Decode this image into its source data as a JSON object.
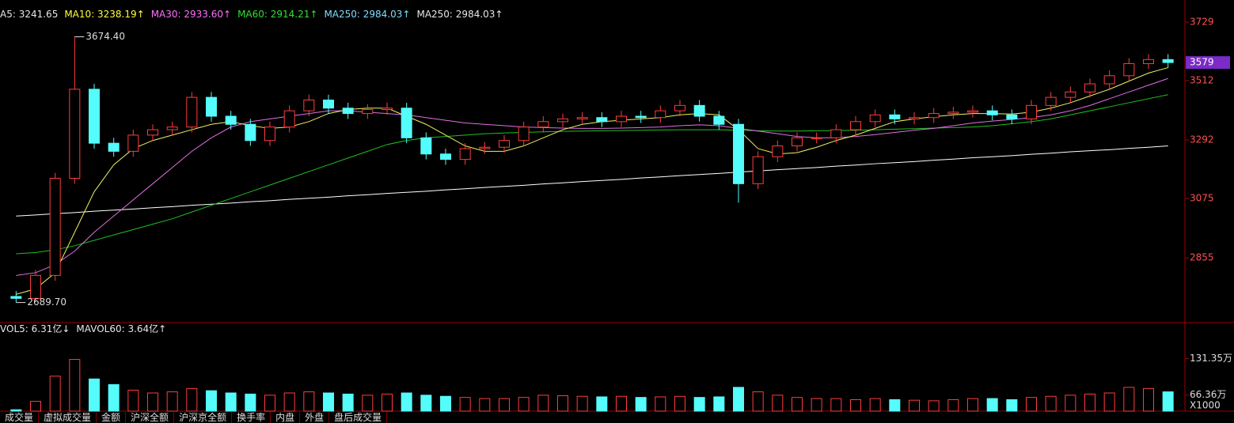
{
  "chart_data": {
    "type": "candlestick",
    "header": [
      {
        "text": "A5: 3241.65",
        "color": "#e6e6e6"
      },
      {
        "text": "MA10: 3238.19↑",
        "color": "#ffff40"
      },
      {
        "text": "MA30: 2933.60↑",
        "color": "#ff70ff"
      },
      {
        "text": "MA60: 2914.21↑",
        "color": "#30e030"
      },
      {
        "text": "MA250: 2984.03↑",
        "color": "#7fdcff"
      },
      {
        "text": "MA250: 2984.03↑",
        "color": "#e6e6e6"
      }
    ],
    "open": [
      2712,
      2705,
      2790,
      3150,
      3480,
      3280,
      3250,
      3310,
      3330,
      3340,
      3450,
      3380,
      3350,
      3290,
      3340,
      3400,
      3440,
      3410,
      3390,
      3405,
      3410,
      3300,
      3240,
      3220,
      3260,
      3265,
      3290,
      3340,
      3360,
      3370,
      3375,
      3360,
      3380,
      3375,
      3400,
      3420,
      3380,
      3350,
      3130,
      3230,
      3270,
      3300,
      3300,
      3330,
      3360,
      3385,
      3370,
      3375,
      3390,
      3395,
      3400,
      3385,
      3370,
      3420,
      3450,
      3470,
      3500,
      3530,
      3575,
      3590
    ],
    "high": [
      2732,
      2810,
      3170,
      3674.4,
      3500,
      3300,
      3330,
      3350,
      3360,
      3470,
      3470,
      3400,
      3370,
      3360,
      3420,
      3460,
      3460,
      3430,
      3425,
      3430,
      3430,
      3320,
      3260,
      3280,
      3285,
      3310,
      3360,
      3380,
      3390,
      3395,
      3395,
      3400,
      3400,
      3420,
      3440,
      3440,
      3400,
      3370,
      3250,
      3290,
      3320,
      3320,
      3350,
      3380,
      3405,
      3405,
      3395,
      3410,
      3415,
      3420,
      3420,
      3405,
      3440,
      3470,
      3490,
      3520,
      3550,
      3595,
      3610,
      3610
    ],
    "low": [
      2689.7,
      2692,
      2770,
      3130,
      3260,
      3230,
      3230,
      3290,
      3310,
      3320,
      3360,
      3330,
      3270,
      3270,
      3320,
      3380,
      3390,
      3370,
      3370,
      3385,
      3280,
      3220,
      3200,
      3200,
      3240,
      3245,
      3270,
      3320,
      3340,
      3350,
      3340,
      3340,
      3355,
      3355,
      3380,
      3360,
      3330,
      3060,
      3110,
      3210,
      3250,
      3280,
      3280,
      3310,
      3340,
      3350,
      3350,
      3355,
      3370,
      3375,
      3365,
      3350,
      3350,
      3400,
      3430,
      3450,
      3480,
      3510,
      3555,
      3559
    ],
    "close": [
      2705,
      2790,
      3150,
      3480,
      3280,
      3250,
      3310,
      3330,
      3340,
      3450,
      3380,
      3350,
      3290,
      3340,
      3400,
      3440,
      3410,
      3390,
      3405,
      3410,
      3300,
      3240,
      3220,
      3260,
      3265,
      3290,
      3340,
      3360,
      3370,
      3375,
      3360,
      3380,
      3375,
      3400,
      3420,
      3380,
      3350,
      3130,
      3230,
      3270,
      3300,
      3300,
      3330,
      3360,
      3385,
      3370,
      3375,
      3390,
      3395,
      3400,
      3385,
      3370,
      3420,
      3450,
      3470,
      3500,
      3530,
      3575,
      3590,
      3579
    ],
    "series": [
      {
        "color": "#ffffff",
        "values": [
          3010,
          3014,
          3019,
          3023,
          3028,
          3032,
          3036,
          3041,
          3045,
          3050,
          3054,
          3058,
          3063,
          3067,
          3072,
          3076,
          3080,
          3085,
          3089,
          3094,
          3098,
          3102,
          3107,
          3111,
          3116,
          3120,
          3124,
          3129,
          3133,
          3138,
          3142,
          3146,
          3151,
          3155,
          3160,
          3164,
          3168,
          3173,
          3177,
          3182,
          3186,
          3190,
          3195,
          3199,
          3204,
          3208,
          3212,
          3217,
          3221,
          3226,
          3230,
          3234,
          3239,
          3243,
          3248,
          3252,
          3256,
          3261,
          3265,
          3270
        ]
      },
      {
        "color": "#20c020",
        "values": [
          2870,
          2875,
          2885,
          2900,
          2920,
          2940,
          2960,
          2980,
          3000,
          3025,
          3050,
          3075,
          3100,
          3125,
          3150,
          3175,
          3200,
          3225,
          3250,
          3275,
          3290,
          3300,
          3305,
          3310,
          3315,
          3318,
          3320,
          3322,
          3324,
          3325,
          3326,
          3327,
          3328,
          3329,
          3330,
          3330,
          3330,
          3328,
          3326,
          3325,
          3325,
          3326,
          3327,
          3328,
          3330,
          3332,
          3334,
          3336,
          3338,
          3340,
          3345,
          3352,
          3360,
          3370,
          3385,
          3400,
          3415,
          3430,
          3445,
          3460
        ]
      },
      {
        "color": "#e070e0",
        "values": [
          2790,
          2800,
          2830,
          2880,
          2950,
          3010,
          3070,
          3130,
          3190,
          3250,
          3300,
          3340,
          3360,
          3370,
          3380,
          3390,
          3400,
          3400,
          3395,
          3390,
          3385,
          3375,
          3365,
          3355,
          3350,
          3345,
          3340,
          3338,
          3336,
          3335,
          3335,
          3336,
          3338,
          3340,
          3345,
          3348,
          3345,
          3335,
          3325,
          3315,
          3305,
          3300,
          3300,
          3305,
          3312,
          3320,
          3328,
          3335,
          3345,
          3355,
          3362,
          3368,
          3375,
          3385,
          3400,
          3420,
          3445,
          3470,
          3495,
          3520
        ]
      },
      {
        "color": "#f0f060",
        "values": [
          2720,
          2740,
          2800,
          2950,
          3100,
          3200,
          3260,
          3290,
          3310,
          3330,
          3350,
          3360,
          3345,
          3335,
          3340,
          3360,
          3390,
          3405,
          3410,
          3410,
          3380,
          3350,
          3310,
          3270,
          3250,
          3250,
          3270,
          3300,
          3330,
          3350,
          3360,
          3365,
          3370,
          3375,
          3385,
          3390,
          3385,
          3330,
          3260,
          3240,
          3245,
          3265,
          3290,
          3310,
          3335,
          3360,
          3370,
          3378,
          3385,
          3390,
          3390,
          3388,
          3395,
          3410,
          3430,
          3455,
          3480,
          3510,
          3540,
          3560
        ]
      }
    ],
    "ylim": [
      2624,
      3758
    ],
    "yticks": [
      3729,
      3512,
      3292,
      3075,
      2855
    ],
    "last_price": 3579,
    "high_label": "3674.40",
    "low_label": "2689.70",
    "up_color": "#ff3c3c",
    "down_color": "#54fcfc",
    "volume_header": [
      {
        "text": "VOL5: 6.31亿↓",
        "color": "#e6e6e6"
      },
      {
        "text": "MAVOL60: 3.64亿↑",
        "color": "#e6e6e6"
      }
    ],
    "volume": [
      40,
      55,
      100,
      130,
      95,
      85,
      75,
      70,
      72,
      78,
      74,
      70,
      68,
      66,
      70,
      72,
      70,
      68,
      66,
      68,
      70,
      66,
      64,
      62,
      60,
      60,
      62,
      66,
      65,
      64,
      63,
      64,
      62,
      63,
      64,
      62,
      63,
      80,
      72,
      66,
      62,
      60,
      60,
      58,
      60,
      58,
      57,
      56,
      58,
      60,
      60,
      58,
      62,
      64,
      66,
      68,
      70,
      80,
      78,
      72
    ],
    "vol_ylim": [
      37.5,
      167.5
    ],
    "vol_yticks": [
      {
        "value": 131.35,
        "label": "131.35万"
      },
      {
        "value": 66.36,
        "label": "66.36万"
      }
    ],
    "vol_unit": "X1000",
    "tabs": [
      "成交量",
      "虚拟成交量",
      "金额",
      "沪深全额",
      "沪深京全额",
      "换手率",
      "内盘",
      "外盘",
      "盘后成交量"
    ]
  }
}
